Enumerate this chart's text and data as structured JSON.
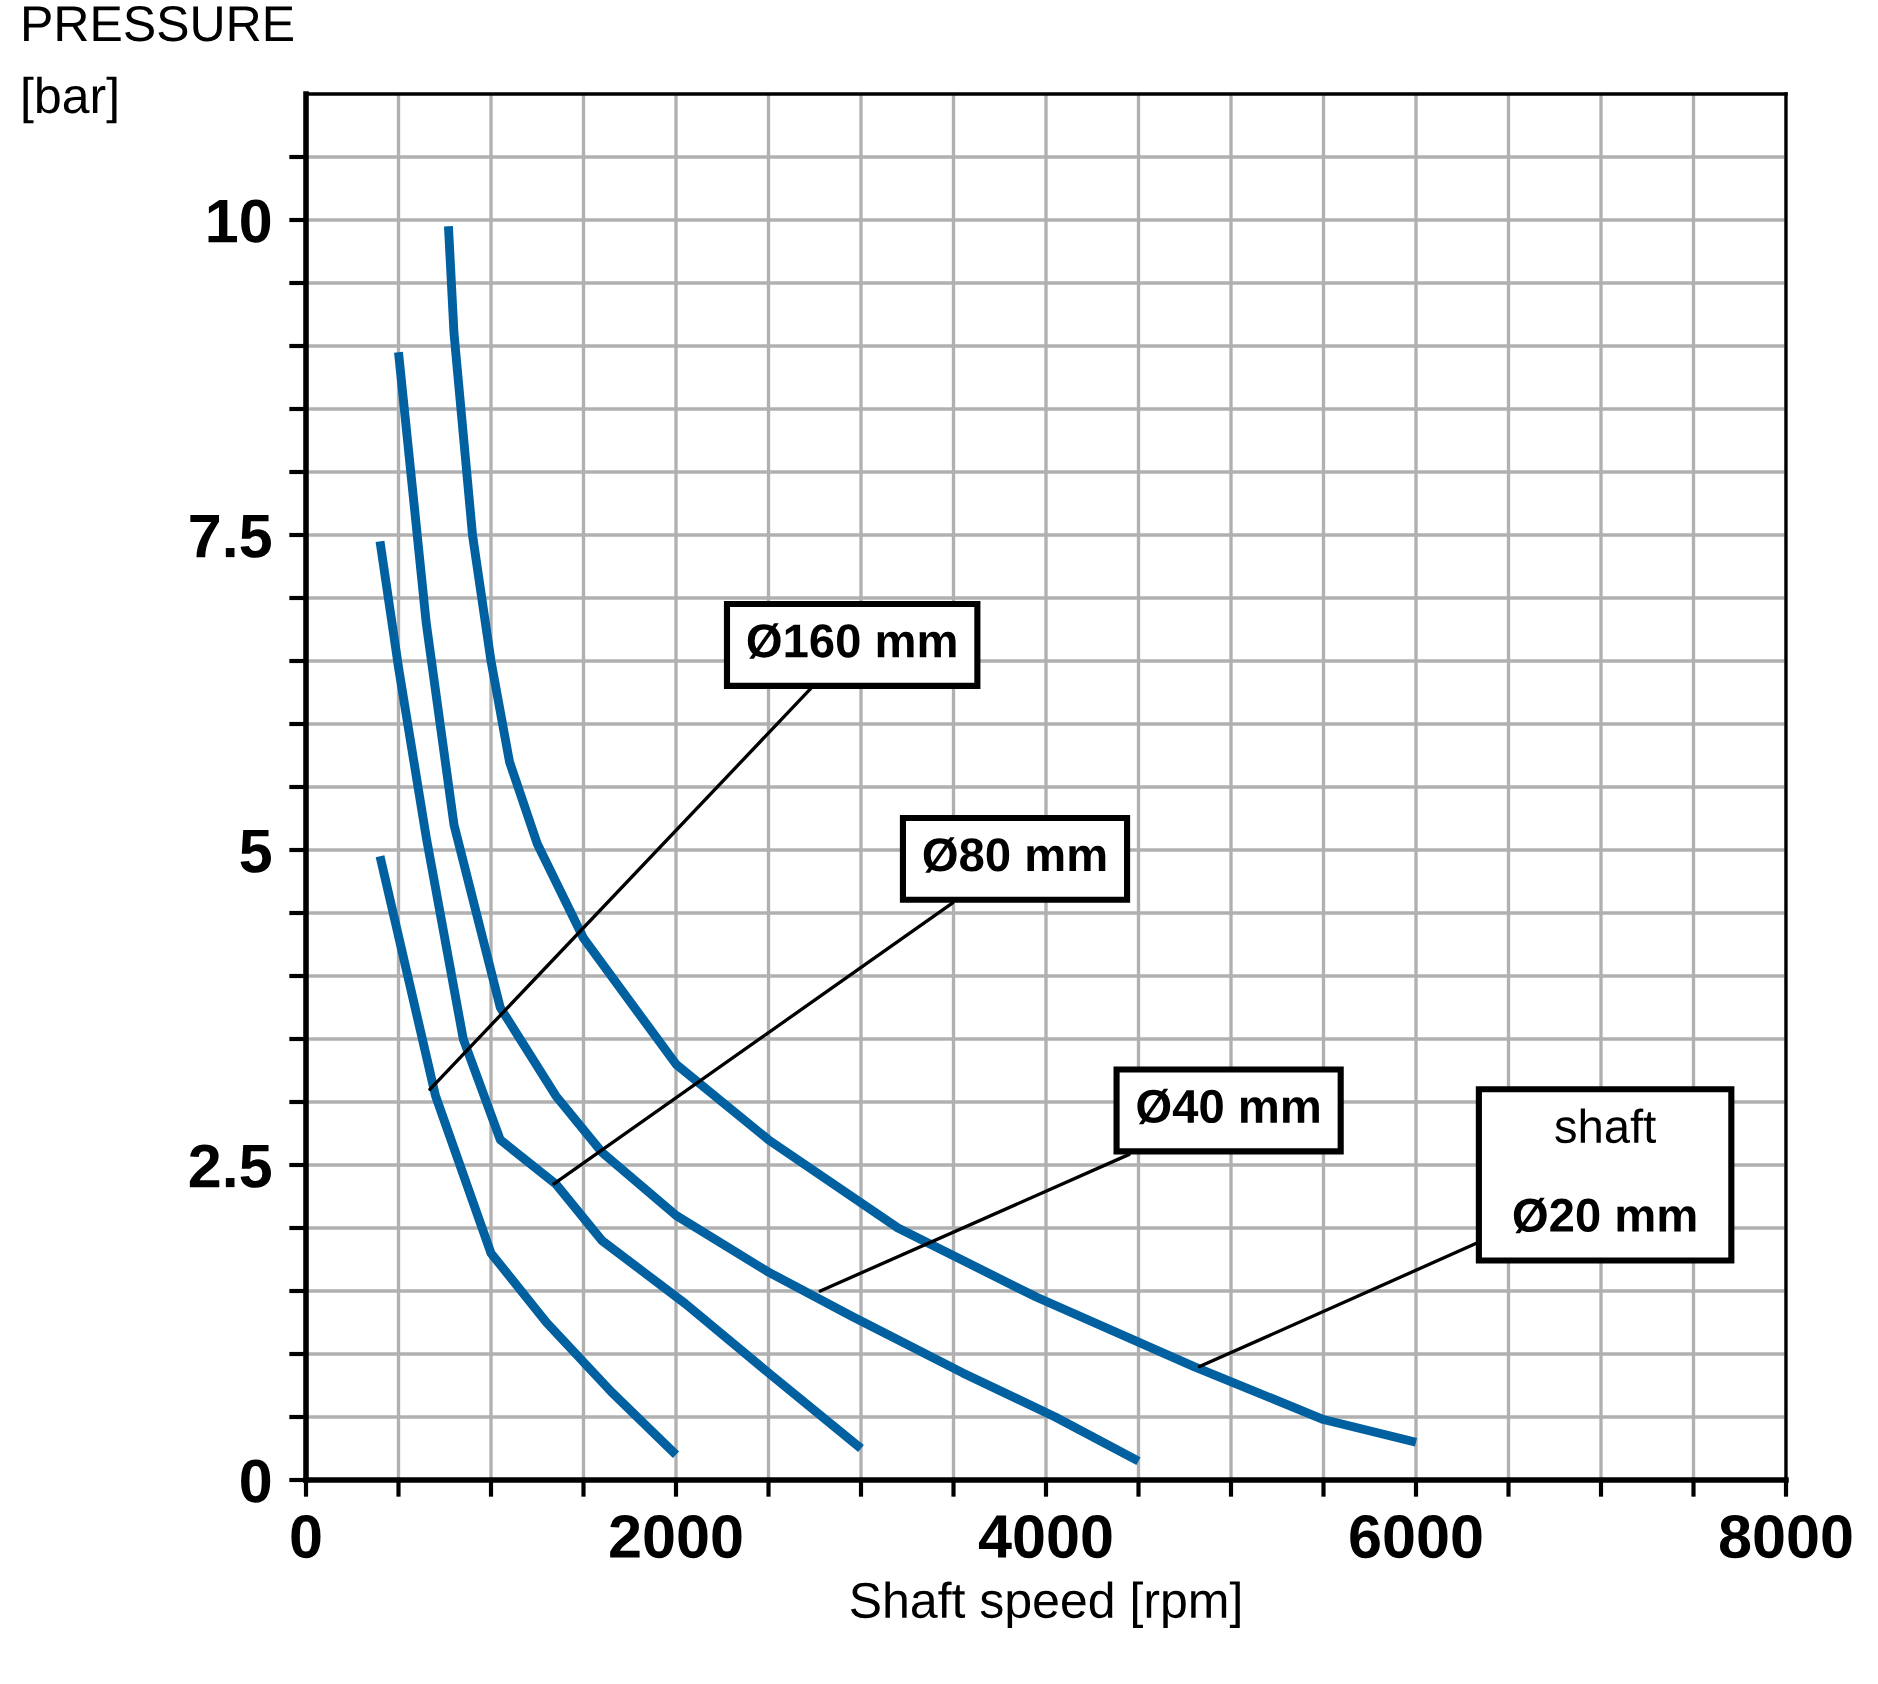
{
  "chart_data": {
    "type": "line",
    "ylabel": "PRESSURE\n[bar]",
    "xlabel": "Shaft speed [rpm]",
    "xlim": [
      0,
      8000
    ],
    "ylim": [
      0,
      11
    ],
    "xticks": [
      0,
      {
        "value": 500,
        "label": null
      },
      {
        "value": 1000,
        "label": null
      },
      {
        "value": 1500,
        "label": null
      },
      2000,
      {
        "value": 2500,
        "label": null
      },
      {
        "value": 3000,
        "label": null
      },
      {
        "value": 3500,
        "label": null
      },
      4000,
      {
        "value": 4500,
        "label": null
      },
      {
        "value": 5000,
        "label": null
      },
      {
        "value": 5500,
        "label": null
      },
      6000,
      {
        "value": 6500,
        "label": null
      },
      {
        "value": 7000,
        "label": null
      },
      {
        "value": 7500,
        "label": null
      },
      8000
    ],
    "yticks": [
      0,
      {
        "value": 0.5,
        "label": null
      },
      {
        "value": 1,
        "label": null
      },
      {
        "value": 1.5,
        "label": null
      },
      {
        "value": 2,
        "label": null
      },
      2.5,
      {
        "value": 3,
        "label": null
      },
      {
        "value": 3.5,
        "label": null
      },
      {
        "value": 4,
        "label": null
      },
      {
        "value": 4.5,
        "label": null
      },
      5,
      {
        "value": 5.5,
        "label": null
      },
      {
        "value": 6,
        "label": null
      },
      {
        "value": 6.5,
        "label": null
      },
      {
        "value": 7,
        "label": null
      },
      7.5,
      {
        "value": 8,
        "label": null
      },
      {
        "value": 8.5,
        "label": null
      },
      {
        "value": 9,
        "label": null
      },
      {
        "value": 9.5,
        "label": null
      },
      10,
      {
        "value": 10.5,
        "label": null
      }
    ],
    "grid": true,
    "marker": "none",
    "line_style": "solid",
    "series": [
      {
        "color": "#0060a0",
        "x": [
          400,
          700,
          1000,
          1300,
          1650,
          2000
        ],
        "values": [
          4.95,
          3.05,
          1.8,
          1.25,
          0.7,
          0.2
        ]
      },
      {
        "color": "#0060a0",
        "x": [
          400,
          500,
          650,
          850,
          1050,
          1350,
          1600,
          2050,
          2500,
          3000
        ],
        "values": [
          7.45,
          6.45,
          5.1,
          3.5,
          2.7,
          2.35,
          1.9,
          1.4,
          0.85,
          0.25
        ]
      },
      {
        "color": "#0060a0",
        "x": [
          500,
          650,
          800,
          1050,
          1350,
          1600,
          2000,
          2500,
          2950,
          3550,
          4050,
          4500
        ],
        "values": [
          8.95,
          6.8,
          5.2,
          3.75,
          3.05,
          2.6,
          2.1,
          1.65,
          1.3,
          0.85,
          0.5,
          0.15
        ]
      },
      {
        "color": "#0060a0",
        "x": [
          770,
          800,
          900,
          1000,
          1100,
          1250,
          1500,
          2000,
          2500,
          3200,
          3950,
          4800,
          5500,
          6000
        ],
        "values": [
          9.95,
          9.1,
          7.5,
          6.5,
          5.7,
          5.05,
          4.3,
          3.3,
          2.7,
          2.0,
          1.45,
          0.9,
          0.48,
          0.3
        ]
      }
    ],
    "annotations": [
      {
        "text": "Ø160 mm",
        "x": 670,
        "y": 3.1
      },
      {
        "text": "Ø80 mm",
        "x": 1340,
        "y": 2.35
      },
      {
        "text": "Ø40 mm",
        "x": 2780,
        "y": 1.5
      },
      {
        "text": "shaft\nØ20 mm",
        "x": 4830,
        "y": 0.9
      }
    ]
  }
}
